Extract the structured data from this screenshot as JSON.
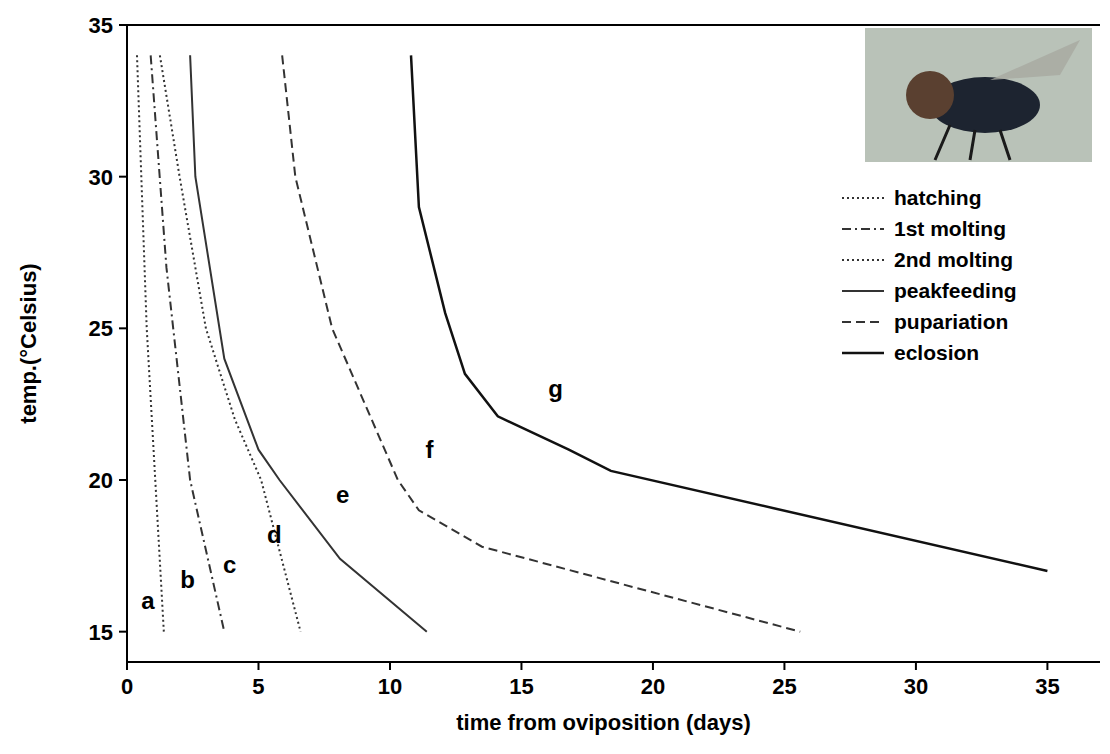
{
  "chart_data": {
    "type": "line",
    "x_label": "time from oviposition (days)",
    "y_label": "temp.(°Celsius)",
    "xlim": [
      0,
      37
    ],
    "ylim": [
      14,
      35
    ],
    "xticks": [
      0,
      5,
      10,
      15,
      20,
      25,
      30,
      35
    ],
    "yticks": [
      15,
      20,
      25,
      30,
      35
    ],
    "grid": false,
    "legend": "upper right",
    "series": [
      {
        "name": "hatching",
        "color": "#333333",
        "line_style": "dotted",
        "x": [
          0.38,
          0.75,
          1.4
        ],
        "values": [
          34,
          25,
          15
        ]
      },
      {
        "name": "1st molting",
        "color": "#333333",
        "line_style": "dashdot",
        "x": [
          0.9,
          1.5,
          2.4,
          3.7
        ],
        "values": [
          34,
          27,
          20,
          15
        ]
      },
      {
        "name": "2nd molting",
        "color": "#333333",
        "line_style": "dotted",
        "x": [
          1.25,
          2.0,
          3.0,
          4.1,
          5.1,
          6.6
        ],
        "values": [
          34,
          30,
          25,
          22,
          20,
          15
        ]
      },
      {
        "name": "peakfeeding",
        "color": "#333333",
        "line_style": "solid",
        "x": [
          2.4,
          2.6,
          3.7,
          5.0,
          5.8,
          8.1,
          11.4
        ],
        "values": [
          34,
          30,
          24,
          21,
          20,
          17.4,
          15
        ]
      },
      {
        "name": "pupariation",
        "color": "#333333",
        "line_style": "dashed",
        "x": [
          5.9,
          6.4,
          7.8,
          9.3,
          10.3,
          11.1,
          13.5,
          25.6
        ],
        "values": [
          34,
          30,
          25,
          22,
          20,
          19,
          17.8,
          15
        ]
      },
      {
        "name": "eclosion",
        "color": "#111111",
        "line_style": "solid",
        "x": [
          10.8,
          11.1,
          12.1,
          12.85,
          14.1,
          16.8,
          18.4,
          35
        ],
        "values": [
          34,
          29,
          25.5,
          23.5,
          22.1,
          21,
          20.3,
          17
        ]
      }
    ],
    "annotations": [
      {
        "text": "a",
        "x": 0.8,
        "y": 16
      },
      {
        "text": "b",
        "x": 2.3,
        "y": 16.7
      },
      {
        "text": "c",
        "x": 3.9,
        "y": 17.2
      },
      {
        "text": "d",
        "x": 5.6,
        "y": 18.2
      },
      {
        "text": "e",
        "x": 8.2,
        "y": 19.5
      },
      {
        "text": "f",
        "x": 11.5,
        "y": 21
      },
      {
        "text": "g",
        "x": 16.3,
        "y": 23
      }
    ]
  }
}
